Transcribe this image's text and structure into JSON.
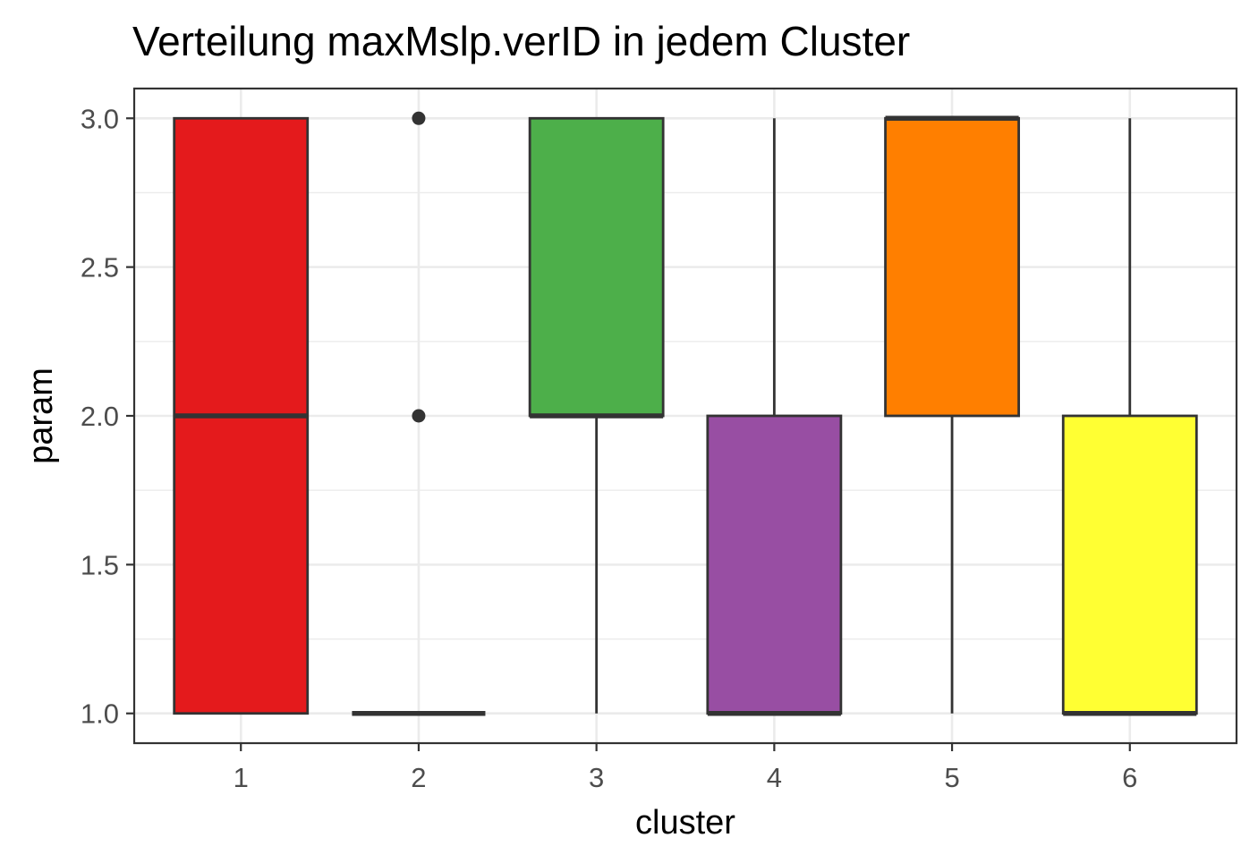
{
  "chart_data": {
    "type": "boxplot",
    "title": "Verteilung maxMslp.verID in jedem Cluster",
    "xlabel": "cluster",
    "ylabel": "param",
    "ylim": [
      0.9,
      3.1
    ],
    "y_ticks": [
      "1.0",
      "1.5",
      "2.0",
      "2.5",
      "3.0"
    ],
    "y_tick_values": [
      1.0,
      1.5,
      2.0,
      2.5,
      3.0
    ],
    "categories": [
      "1",
      "2",
      "3",
      "4",
      "5",
      "6"
    ],
    "grid": true,
    "legend": "none",
    "boxes": [
      {
        "category": "1",
        "color": "#E41A1C",
        "whisker_low": 1,
        "q1": 1,
        "median": 2,
        "q3": 3,
        "whisker_high": 3,
        "outliers": []
      },
      {
        "category": "2",
        "color": "#377EB8",
        "whisker_low": 1,
        "q1": 1,
        "median": 1,
        "q3": 1,
        "whisker_high": 1,
        "outliers": [
          2,
          3
        ]
      },
      {
        "category": "3",
        "color": "#4DAF4A",
        "whisker_low": 1,
        "q1": 2,
        "median": 2,
        "q3": 3,
        "whisker_high": 3,
        "outliers": []
      },
      {
        "category": "4",
        "color": "#984EA3",
        "whisker_low": 1,
        "q1": 1,
        "median": 1,
        "q3": 2,
        "whisker_high": 3,
        "outliers": []
      },
      {
        "category": "5",
        "color": "#FF7F00",
        "whisker_low": 1,
        "q1": 2,
        "median": 3,
        "q3": 3,
        "whisker_high": 3,
        "outliers": []
      },
      {
        "category": "6",
        "color": "#FFFF33",
        "whisker_low": 1,
        "q1": 1,
        "median": 1,
        "q3": 2,
        "whisker_high": 3,
        "outliers": []
      }
    ]
  }
}
